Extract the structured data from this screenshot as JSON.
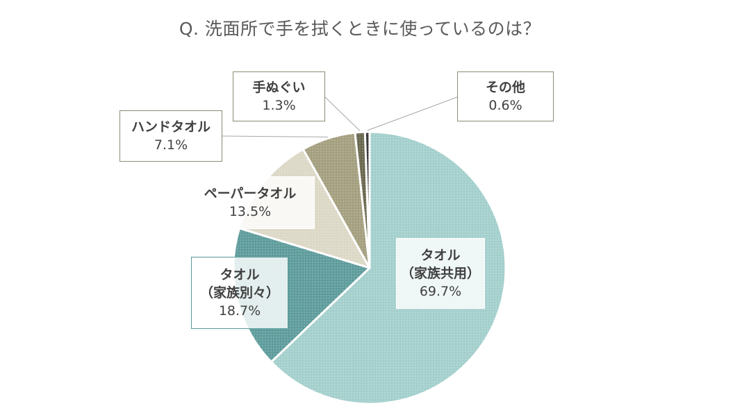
{
  "chart_data": {
    "type": "pie",
    "title": "Q.  洗面所で手を拭くときに使っているのは？",
    "slices": [
      {
        "label": "タオル（家族共用）",
        "name_lines": [
          "タオル",
          "（家族共用）"
        ],
        "value": 69.7,
        "value_label": "69.7%",
        "color": "#a3cfcc"
      },
      {
        "label": "タオル（家族別々）",
        "name_lines": [
          "タオル",
          "（家族別々）"
        ],
        "value": 18.7,
        "value_label": "18.7%",
        "color": "#5f9c9c"
      },
      {
        "label": "ペーパータオル",
        "name_lines": [
          "ペーパータオル"
        ],
        "value": 13.5,
        "value_label": "13.5%",
        "color": "#dcd8c6"
      },
      {
        "label": "ハンドタオル",
        "name_lines": [
          "ハンドタオル"
        ],
        "value": 7.1,
        "value_label": "7.1%",
        "color": "#a49f7f"
      },
      {
        "label": "手ぬぐい",
        "name_lines": [
          "手ぬぐい"
        ],
        "value": 1.3,
        "value_label": "1.3%",
        "color": "#69674e"
      },
      {
        "label": "その他",
        "name_lines": [
          "その他"
        ],
        "value": 0.6,
        "value_label": "0.6%",
        "color": "#333333"
      }
    ],
    "legend": "none",
    "start_angle": "12 o'clock",
    "direction": "clockwise"
  }
}
